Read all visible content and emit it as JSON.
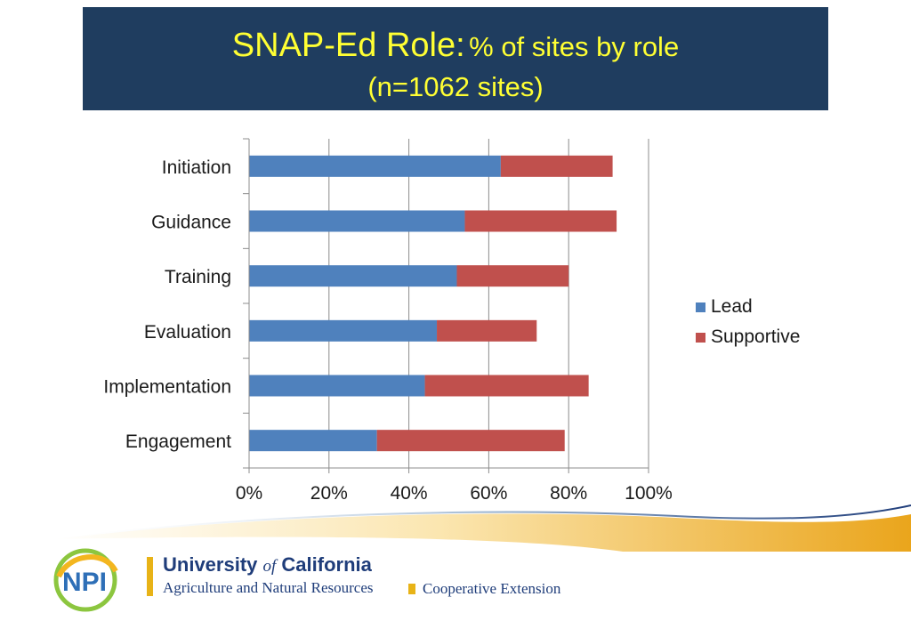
{
  "header": {
    "title_main": "SNAP-Ed Role:",
    "title_sub": "% of sites by role",
    "subtitle": "(n=1062 sites)",
    "background_color": "#1f3d5f",
    "text_color": "#ffff33"
  },
  "chart_data": {
    "type": "bar",
    "orientation": "horizontal",
    "stacked": true,
    "categories": [
      "Initiation",
      "Guidance",
      "Training",
      "Evaluation",
      "Implementation",
      "Engagement"
    ],
    "series": [
      {
        "name": "Lead",
        "color": "#4f81bd",
        "values": [
          63,
          54,
          52,
          47,
          44,
          32
        ]
      },
      {
        "name": "Supportive",
        "color": "#c0504d",
        "values": [
          28,
          38,
          28,
          25,
          41,
          47
        ]
      }
    ],
    "xlim": [
      0,
      100
    ],
    "x_ticks": [
      "0%",
      "20%",
      "40%",
      "60%",
      "80%",
      "100%"
    ],
    "grid": "vertical",
    "legend_position": "right"
  },
  "footer": {
    "logo_text": "NPI",
    "university_name_part1": "University",
    "university_name_of": "of",
    "university_name_part2": "California",
    "department": "Agriculture and Natural Resources",
    "extension": "Cooperative Extension",
    "accent_color": "#e8b317",
    "brand_color": "#1f3d7a"
  }
}
